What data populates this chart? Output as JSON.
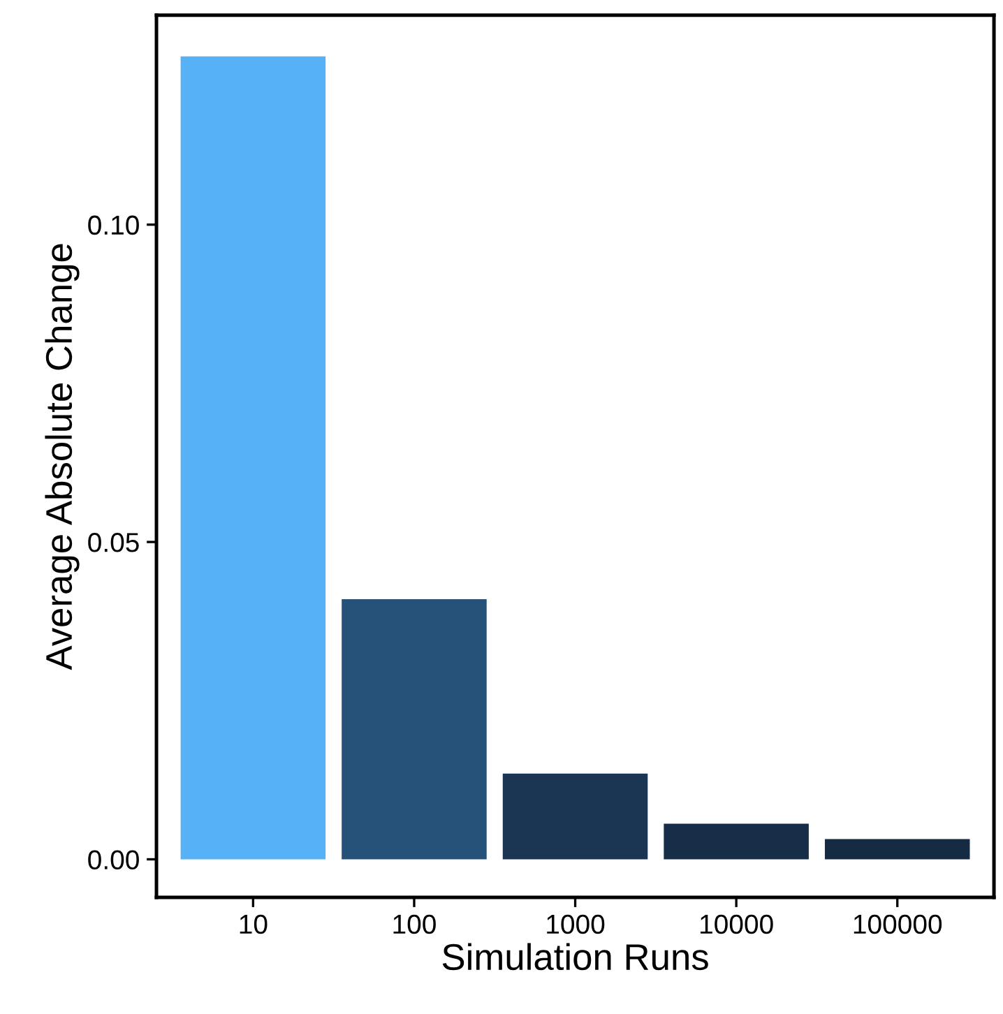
{
  "chart_data": {
    "type": "bar",
    "xlabel": "Simulation Runs",
    "ylabel": "Average Absolute Change",
    "categories": [
      "10",
      "100",
      "1000",
      "10000",
      "100000"
    ],
    "values": [
      0.1265,
      0.041,
      0.0135,
      0.0056,
      0.0032
    ],
    "colors": [
      "#56b1f7",
      "#26527a",
      "#1b3653",
      "#172e48",
      "#142b43"
    ],
    "ylim": [
      -0.006,
      0.133
    ],
    "yticks": [
      {
        "value": 0,
        "label": "0.00"
      },
      {
        "value": 0.05,
        "label": "0.05"
      },
      {
        "value": 0.1,
        "label": "0.10"
      }
    ],
    "grid": false,
    "legend": false
  }
}
